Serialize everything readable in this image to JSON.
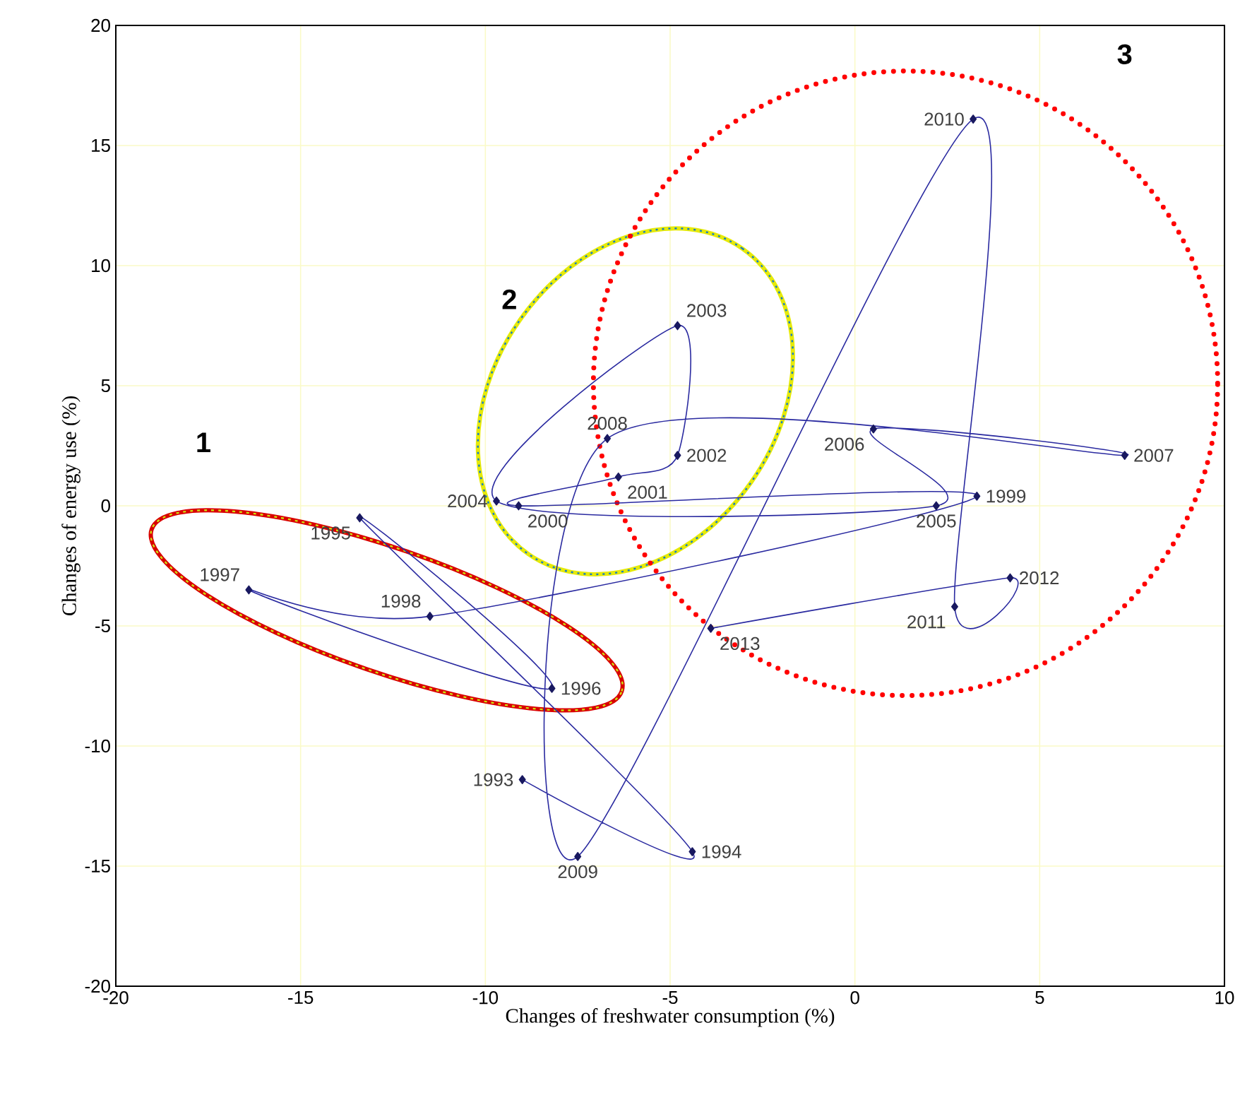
{
  "chart_data": {
    "type": "line",
    "xlabel": "Changes of freshwater consumption (%)",
    "ylabel": "Changes of energy use (%)",
    "xlim": [
      -20,
      10
    ],
    "ylim": [
      -20,
      20
    ],
    "xticks": [
      -20,
      -15,
      -10,
      -5,
      0,
      5,
      10
    ],
    "yticks": [
      -20,
      -15,
      -10,
      -5,
      0,
      5,
      10,
      15,
      20
    ],
    "grid": true,
    "marker": "diamond",
    "series": [
      {
        "color": "#2a2aa0",
        "x": [
          -9.0,
          -4.4,
          -13.4,
          -8.2,
          -16.4,
          -11.5,
          3.3,
          -9.1,
          -6.4,
          -4.8,
          -4.8,
          -9.7,
          2.2,
          0.5,
          7.3,
          -6.7,
          -7.5,
          3.2,
          2.7,
          4.2,
          -3.9
        ],
        "values": [
          -11.4,
          -14.4,
          -0.5,
          -7.6,
          -3.5,
          -4.6,
          0.4,
          0.0,
          1.2,
          2.1,
          7.5,
          0.2,
          0.0,
          3.2,
          2.1,
          2.8,
          -14.6,
          16.1,
          -4.2,
          -3.0,
          -5.1
        ]
      }
    ],
    "annotations": [
      {
        "text": "1993",
        "x": -9.0,
        "y": -11.4
      },
      {
        "text": "1994",
        "x": -4.4,
        "y": -14.4
      },
      {
        "text": "1995",
        "x": -13.4,
        "y": -0.5
      },
      {
        "text": "1996",
        "x": -8.2,
        "y": -7.6
      },
      {
        "text": "1997",
        "x": -16.4,
        "y": -3.5
      },
      {
        "text": "1998",
        "x": -11.5,
        "y": -4.6
      },
      {
        "text": "1999",
        "x": 3.3,
        "y": 0.4
      },
      {
        "text": "2000",
        "x": -9.1,
        "y": 0.0
      },
      {
        "text": "2001",
        "x": -6.4,
        "y": 1.2
      },
      {
        "text": "2002",
        "x": -4.8,
        "y": 2.1
      },
      {
        "text": "2003",
        "x": -4.8,
        "y": 7.5
      },
      {
        "text": "2004",
        "x": -9.7,
        "y": 0.2
      },
      {
        "text": "2005",
        "x": 2.2,
        "y": 0.0
      },
      {
        "text": "2006",
        "x": 0.5,
        "y": 3.2
      },
      {
        "text": "2007",
        "x": 7.3,
        "y": 2.1
      },
      {
        "text": "2008",
        "x": -6.7,
        "y": 2.8
      },
      {
        "text": "2009",
        "x": -7.5,
        "y": -14.6
      },
      {
        "text": "2010",
        "x": 3.2,
        "y": 16.1
      },
      {
        "text": "2011",
        "x": 2.7,
        "y": -4.2
      },
      {
        "text": "2012",
        "x": 4.2,
        "y": -3.0
      },
      {
        "text": "2013",
        "x": -3.9,
        "y": -5.1
      },
      "1",
      "2",
      "3"
    ]
  }
}
